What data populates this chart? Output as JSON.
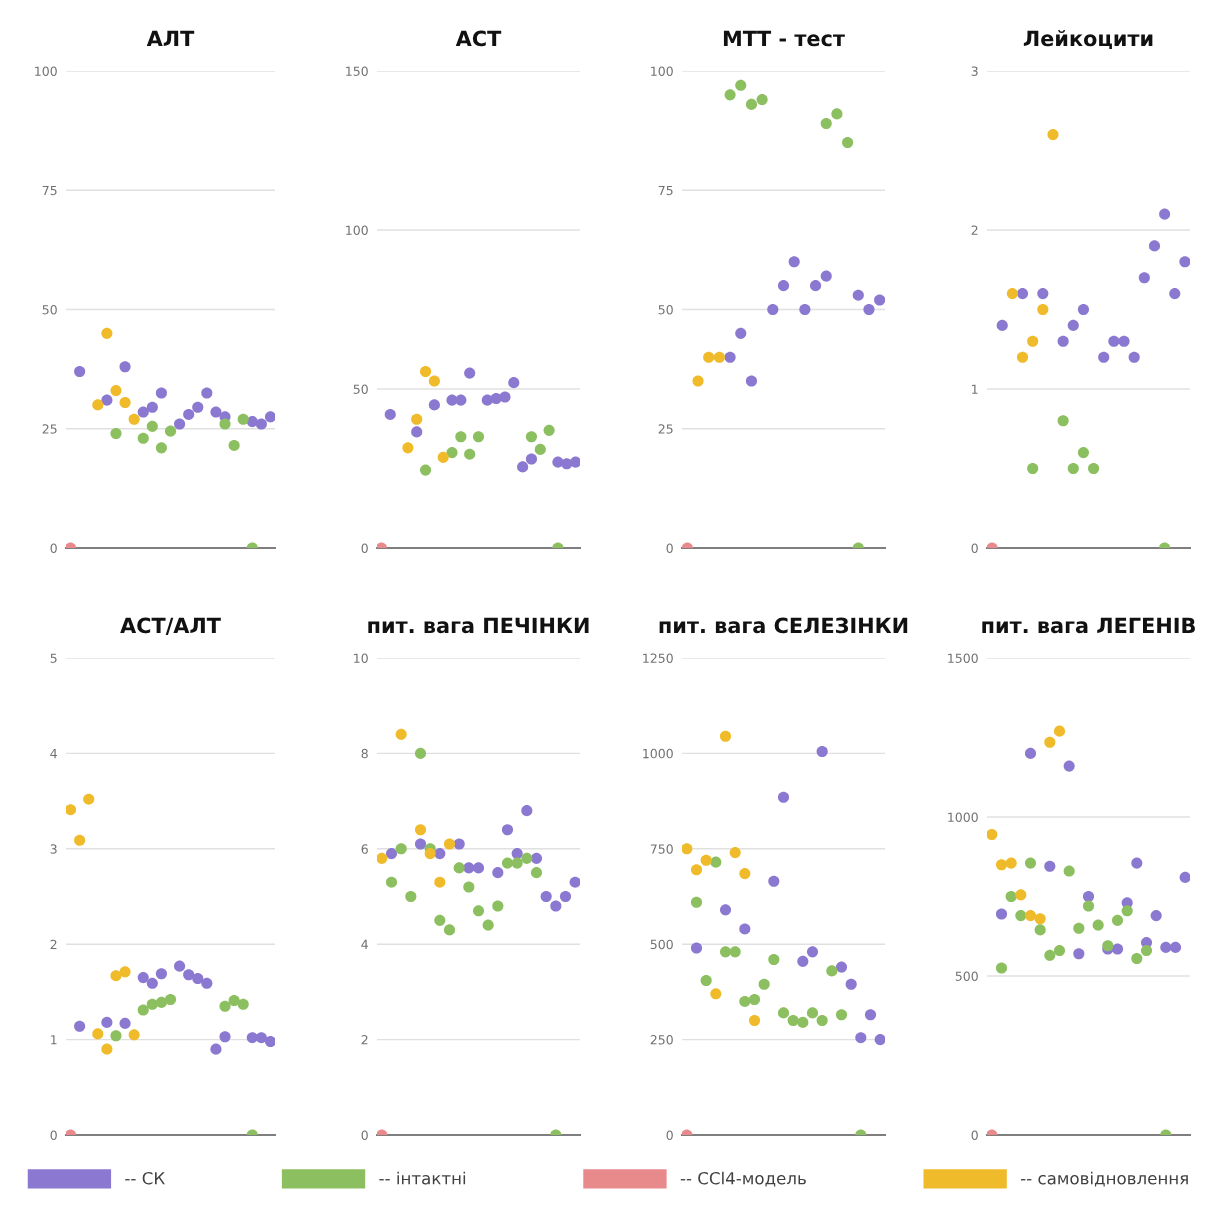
{
  "chart_data": [
    {
      "type": "scatter",
      "title": "АЛТ",
      "categories": [
        null,
        null,
        null,
        null,
        null,
        null,
        null,
        null,
        null,
        null,
        null,
        null,
        null,
        null,
        null,
        null,
        null,
        null,
        null,
        null,
        null,
        null,
        null
      ],
      "ylim": [
        0,
        100
      ],
      "yticks": [
        0,
        25,
        50,
        75,
        100
      ],
      "grid": "y",
      "marker": "circle",
      "legend": "bottom",
      "series": [
        {
          "name": "-- СК",
          "color": "#8b78d0",
          "values": [
            null,
            37,
            null,
            null,
            31,
            null,
            38,
            null,
            28.5,
            29.5,
            32.5,
            null,
            26,
            28,
            29.5,
            32.5,
            28.5,
            27.5,
            null,
            null,
            26.5,
            26,
            27.5
          ]
        },
        {
          "name": "-- інтактні",
          "color": "#8cbf5f",
          "values": [
            null,
            null,
            null,
            null,
            null,
            24,
            null,
            null,
            23,
            25.5,
            21,
            24.5,
            null,
            null,
            null,
            null,
            null,
            26,
            21.5,
            27,
            0,
            null,
            null
          ]
        },
        {
          "name": "-- CCl4-модель",
          "color": "#e8898c",
          "values": [
            0,
            null,
            null,
            null,
            null,
            null,
            null,
            null,
            null,
            null,
            null,
            null,
            null,
            null,
            null,
            null,
            null,
            null,
            null,
            null,
            null,
            null,
            null
          ]
        },
        {
          "name": "-- самовідновлення",
          "color": "#f0bb2a",
          "values": [
            null,
            null,
            null,
            30,
            45,
            33,
            30.5,
            27,
            null,
            null,
            null,
            null,
            null,
            null,
            null,
            null,
            null,
            null,
            null,
            null,
            null,
            null,
            null
          ]
        }
      ]
    },
    {
      "type": "scatter",
      "title": "АСТ",
      "categories": [
        null,
        null,
        null,
        null,
        null,
        null,
        null,
        null,
        null,
        null,
        null,
        null,
        null,
        null,
        null,
        null,
        null,
        null,
        null,
        null,
        null,
        null,
        null
      ],
      "ylim": [
        0,
        150
      ],
      "yticks": [
        0,
        50,
        100,
        150
      ],
      "grid": "y",
      "marker": "circle",
      "series": [
        {
          "color": "#8b78d0",
          "values": [
            null,
            42,
            null,
            null,
            36.5,
            null,
            45,
            null,
            46.5,
            46.5,
            55,
            null,
            46.5,
            47,
            47.5,
            52,
            25.5,
            28,
            null,
            null,
            27,
            26.5,
            27
          ]
        },
        {
          "color": "#8cbf5f",
          "values": [
            null,
            null,
            null,
            null,
            null,
            24.5,
            null,
            null,
            30,
            35,
            29.5,
            35,
            null,
            null,
            null,
            null,
            null,
            35,
            31,
            37,
            0,
            null,
            null
          ]
        },
        {
          "color": "#e8898c",
          "values": [
            0,
            null,
            null,
            null,
            null,
            null,
            null,
            null,
            null,
            null,
            null,
            null,
            null,
            null,
            null,
            null,
            null,
            null,
            null,
            null,
            null,
            null,
            null
          ]
        },
        {
          "color": "#f0bb2a",
          "values": [
            null,
            null,
            null,
            31.5,
            40.5,
            55.5,
            52.5,
            28.5,
            null,
            null,
            null,
            null,
            null,
            null,
            null,
            null,
            null,
            null,
            null,
            null,
            null,
            null,
            null
          ]
        }
      ]
    },
    {
      "type": "scatter",
      "title": "МТТ - тест",
      "categories": [
        null,
        null,
        null,
        null,
        null,
        null,
        null,
        null,
        null,
        null,
        null,
        null,
        null,
        null,
        null,
        null,
        null,
        null,
        null
      ],
      "ylim": [
        0,
        100
      ],
      "yticks": [
        0,
        25,
        50,
        75,
        100
      ],
      "grid": "y",
      "marker": "circle",
      "series": [
        {
          "color": "#8b78d0",
          "values": [
            null,
            null,
            null,
            null,
            40,
            45,
            35,
            null,
            50,
            55,
            60,
            50,
            55,
            57,
            null,
            null,
            53,
            50,
            52
          ]
        },
        {
          "color": "#8cbf5f",
          "values": [
            null,
            null,
            null,
            null,
            95,
            97,
            93,
            94,
            null,
            null,
            null,
            null,
            null,
            89,
            91,
            85,
            0,
            null,
            null
          ]
        },
        {
          "color": "#e8898c",
          "values": [
            0,
            null,
            null,
            null,
            null,
            null,
            null,
            null,
            null,
            null,
            null,
            null,
            null,
            null,
            null,
            null,
            null,
            null,
            null
          ]
        },
        {
          "color": "#f0bb2a",
          "values": [
            null,
            35,
            40,
            40,
            null,
            null,
            null,
            null,
            null,
            null,
            null,
            null,
            null,
            null,
            null,
            null,
            null,
            null,
            null
          ]
        }
      ]
    },
    {
      "type": "scatter",
      "title": "Лейкоцити",
      "categories": [
        null,
        null,
        null,
        null,
        null,
        null,
        null,
        null,
        null,
        null,
        null,
        null,
        null,
        null,
        null,
        null,
        null,
        null,
        null,
        null
      ],
      "ylim": [
        0,
        3
      ],
      "yticks": [
        0,
        1,
        2,
        3
      ],
      "grid": "y",
      "marker": "circle",
      "series": [
        {
          "color": "#8b78d0",
          "values": [
            null,
            1.4,
            null,
            1.6,
            null,
            1.6,
            null,
            1.3,
            1.4,
            1.5,
            null,
            1.2,
            1.3,
            1.3,
            1.2,
            1.7,
            1.9,
            2.1,
            1.6,
            1.8
          ]
        },
        {
          "color": "#8cbf5f",
          "values": [
            null,
            null,
            null,
            null,
            0.5,
            null,
            null,
            0.8,
            0.5,
            0.6,
            0.5,
            null,
            null,
            null,
            null,
            null,
            null,
            0,
            null,
            null
          ]
        },
        {
          "color": "#e8898c",
          "values": [
            0,
            null,
            null,
            null,
            null,
            null,
            null,
            null,
            null,
            null,
            null,
            null,
            null,
            null,
            null,
            null,
            null,
            null,
            null,
            null
          ]
        },
        {
          "color": "#f0bb2a",
          "values": [
            null,
            null,
            1.6,
            1.2,
            1.3,
            1.5,
            2.6,
            null,
            null,
            null,
            null,
            null,
            null,
            null,
            null,
            null,
            null,
            null,
            null,
            null
          ]
        }
      ]
    },
    {
      "type": "scatter",
      "title": "АСТ/АЛТ",
      "categories": [
        null,
        null,
        null,
        null,
        null,
        null,
        null,
        null,
        null,
        null,
        null,
        null,
        null,
        null,
        null,
        null,
        null,
        null,
        null,
        null,
        null,
        null,
        null
      ],
      "ylim": [
        0,
        5
      ],
      "yticks": [
        0,
        1,
        2,
        3,
        4,
        5
      ],
      "grid": "y",
      "marker": "circle",
      "series": [
        {
          "color": "#8b78d0",
          "values": [
            null,
            1.14,
            null,
            null,
            1.18,
            null,
            1.17,
            null,
            1.65,
            1.59,
            1.69,
            null,
            1.77,
            1.68,
            1.64,
            1.59,
            0.9,
            1.03,
            null,
            null,
            1.02,
            1.02,
            0.98
          ]
        },
        {
          "color": "#8cbf5f",
          "values": [
            null,
            null,
            null,
            null,
            null,
            1.04,
            null,
            null,
            1.31,
            1.37,
            1.39,
            1.42,
            null,
            null,
            null,
            null,
            null,
            1.35,
            1.41,
            1.37,
            0,
            null,
            null
          ]
        },
        {
          "color": "#e8898c",
          "values": [
            0,
            null,
            null,
            null,
            null,
            null,
            null,
            null,
            null,
            null,
            null,
            null,
            null,
            null,
            null,
            null,
            null,
            null,
            null,
            null,
            null,
            null,
            null
          ]
        },
        {
          "color": "#f0bb2a",
          "values": [
            3.41,
            3.09,
            3.52,
            1.06,
            0.9,
            1.67,
            1.71,
            1.05,
            null,
            null,
            null,
            null,
            null,
            null,
            null,
            null,
            null,
            null,
            null,
            null,
            null,
            null,
            null
          ]
        }
      ]
    },
    {
      "type": "scatter",
      "title": "пит. вага ПЕЧІНКИ",
      "categories": [
        null,
        null,
        null,
        null,
        null,
        null,
        null,
        null,
        null,
        null,
        null,
        null,
        null,
        null,
        null,
        null,
        null,
        null,
        null,
        null,
        null
      ],
      "ylim": [
        0,
        10
      ],
      "yticks": [
        0,
        2,
        4,
        6,
        8,
        10
      ],
      "grid": "y",
      "marker": "circle",
      "series": [
        {
          "color": "#8b78d0",
          "values": [
            null,
            5.9,
            null,
            null,
            6.1,
            null,
            5.9,
            null,
            6.1,
            5.6,
            5.6,
            null,
            5.5,
            6.4,
            5.9,
            6.8,
            5.8,
            5.0,
            4.8,
            5.0,
            5.3
          ]
        },
        {
          "color": "#8cbf5f",
          "values": [
            null,
            5.3,
            6.0,
            5.0,
            8.0,
            6.0,
            4.5,
            4.3,
            5.6,
            5.2,
            4.7,
            4.4,
            4.8,
            5.7,
            5.7,
            5.8,
            5.5,
            null,
            0,
            null,
            null
          ]
        },
        {
          "color": "#e8898c",
          "values": [
            0,
            null,
            null,
            null,
            null,
            null,
            null,
            null,
            null,
            null,
            null,
            null,
            null,
            null,
            null,
            null,
            null,
            null,
            null,
            null,
            null
          ]
        },
        {
          "color": "#f0bb2a",
          "values": [
            5.8,
            null,
            8.4,
            null,
            6.4,
            5.9,
            5.3,
            6.1,
            null,
            null,
            null,
            null,
            null,
            null,
            null,
            null,
            null,
            null,
            null,
            null,
            null
          ]
        }
      ]
    },
    {
      "type": "scatter",
      "title": "пит. вага СЕЛЕЗІНКИ",
      "categories": [
        null,
        null,
        null,
        null,
        null,
        null,
        null,
        null,
        null,
        null,
        null,
        null,
        null,
        null,
        null,
        null,
        null,
        null,
        null,
        null,
        null
      ],
      "ylim": [
        0,
        1250
      ],
      "yticks": [
        0,
        250,
        500,
        750,
        1000,
        1250
      ],
      "grid": "y",
      "marker": "circle",
      "series": [
        {
          "color": "#8b78d0",
          "values": [
            null,
            490,
            null,
            null,
            590,
            null,
            540,
            null,
            null,
            665,
            885,
            null,
            455,
            480,
            1005,
            null,
            440,
            395,
            255,
            315,
            250
          ]
        },
        {
          "color": "#8cbf5f",
          "values": [
            null,
            610,
            405,
            715,
            480,
            480,
            350,
            355,
            395,
            460,
            320,
            300,
            295,
            320,
            300,
            430,
            315,
            null,
            0,
            null,
            null
          ]
        },
        {
          "color": "#e8898c",
          "values": [
            0,
            null,
            null,
            null,
            null,
            null,
            null,
            null,
            null,
            null,
            null,
            null,
            null,
            null,
            null,
            null,
            null,
            null,
            null,
            null,
            null
          ]
        },
        {
          "color": "#f0bb2a",
          "values": [
            750,
            695,
            720,
            370,
            1045,
            740,
            685,
            300,
            null,
            null,
            null,
            null,
            null,
            null,
            null,
            null,
            null,
            null,
            null,
            null,
            null
          ]
        }
      ]
    },
    {
      "type": "scatter",
      "title": "пит. вага ЛЕГЕНІВ",
      "categories": [
        null,
        null,
        null,
        null,
        null,
        null,
        null,
        null,
        null,
        null,
        null,
        null,
        null,
        null,
        null,
        null,
        null,
        null,
        null,
        null,
        null
      ],
      "ylim": [
        0,
        1500
      ],
      "yticks": [
        0,
        500,
        1000,
        1500
      ],
      "grid": "y",
      "marker": "circle",
      "series": [
        {
          "color": "#8b78d0",
          "values": [
            null,
            695,
            null,
            null,
            1200,
            null,
            845,
            null,
            1160,
            570,
            750,
            null,
            585,
            585,
            730,
            855,
            605,
            690,
            590,
            590,
            810
          ]
        },
        {
          "color": "#8cbf5f",
          "values": [
            null,
            525,
            750,
            690,
            855,
            645,
            565,
            580,
            830,
            650,
            720,
            660,
            595,
            675,
            705,
            555,
            580,
            null,
            0,
            null,
            null
          ]
        },
        {
          "color": "#e8898c",
          "values": [
            0,
            null,
            null,
            null,
            null,
            null,
            null,
            null,
            null,
            null,
            null,
            null,
            null,
            null,
            null,
            null,
            null,
            null,
            null,
            null,
            null
          ]
        },
        {
          "color": "#f0bb2a",
          "values": [
            945,
            850,
            855,
            755,
            690,
            680,
            1235,
            1270,
            null,
            null,
            null,
            null,
            null,
            null,
            null,
            null,
            null,
            null,
            null,
            null,
            null
          ]
        }
      ]
    }
  ]
}
